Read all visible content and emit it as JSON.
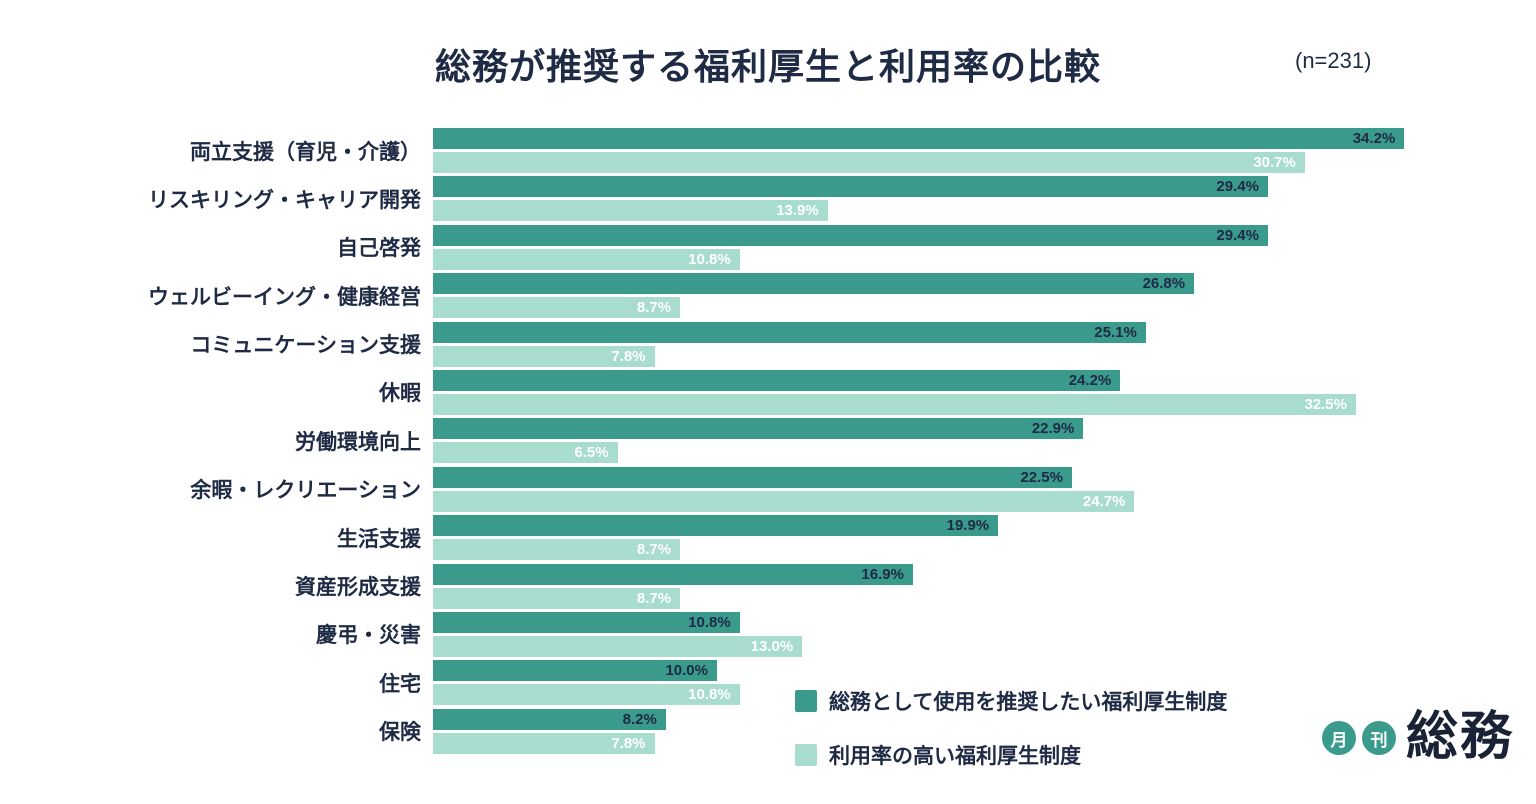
{
  "header": {
    "title": "総務が推奨する福利厚生と利用率の比較",
    "n_label": "(n=231)"
  },
  "colors": {
    "series_dark": "#3a9a8c",
    "series_light": "#a7dccf",
    "text": "#1f2a44"
  },
  "chart_data": {
    "type": "bar",
    "orientation": "horizontal",
    "title": "総務が推奨する福利厚生と利用率の比較",
    "sample_size_label": "(n=231)",
    "value_suffix": "%",
    "xlim": [
      0,
      36
    ],
    "grid": false,
    "legend_position": "bottom-right",
    "categories": [
      "両立支援（育児・介護）",
      "リスキリング・キャリア開発",
      "自己啓発",
      "ウェルビーイング・健康経営",
      "コミュニケーション支援",
      "休暇",
      "労働環境向上",
      "余暇・レクリエーション",
      "生活支援",
      "資産形成支援",
      "慶弔・災害",
      "住宅",
      "保険"
    ],
    "series": [
      {
        "name": "総務として使用を推奨したい福利厚生制度",
        "color": "#3a9a8c",
        "values": [
          34.2,
          29.4,
          29.4,
          26.8,
          25.1,
          24.2,
          22.9,
          22.5,
          19.9,
          16.9,
          10.8,
          10.0,
          8.2
        ]
      },
      {
        "name": "利用率の高い福利厚生制度",
        "color": "#a7dccf",
        "values": [
          30.7,
          13.9,
          10.8,
          8.7,
          7.8,
          32.5,
          6.5,
          24.7,
          8.7,
          8.7,
          13.0,
          10.8,
          7.8
        ]
      }
    ]
  },
  "logo": {
    "circle1": "月",
    "circle2": "刊",
    "brand": "総務"
  }
}
